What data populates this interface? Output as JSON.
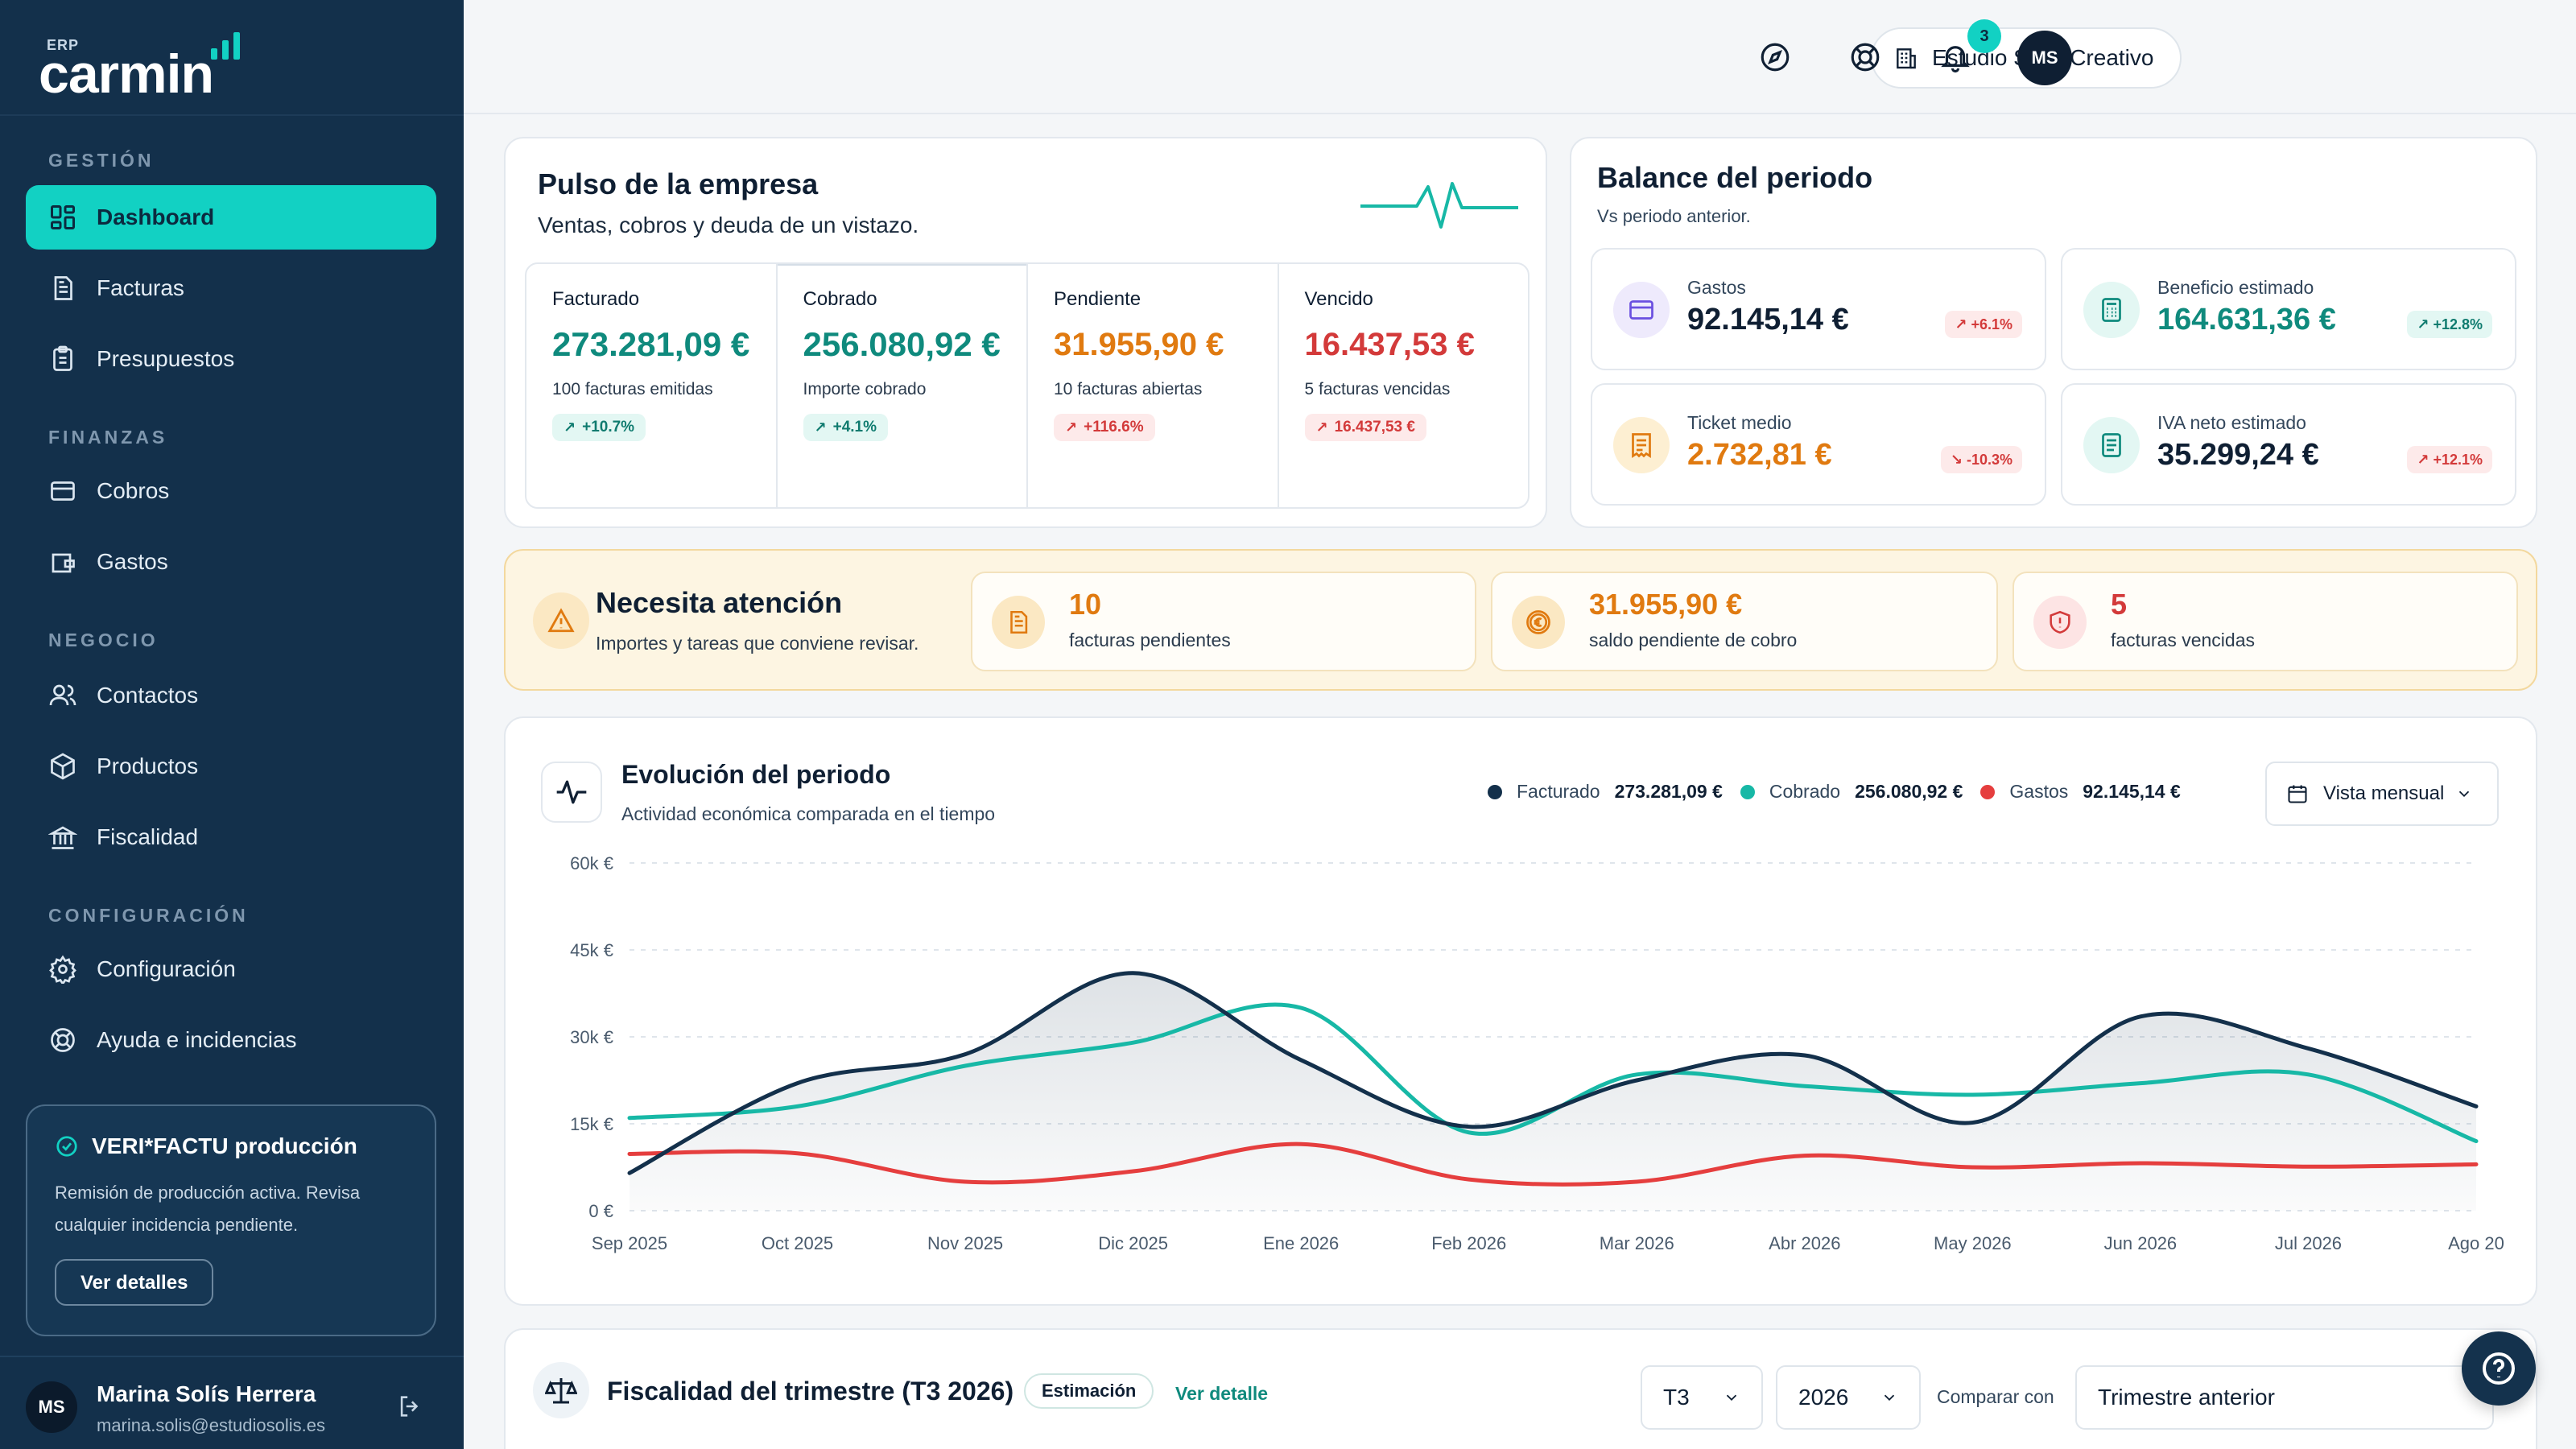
{
  "brand": {
    "erp_label": "ERP",
    "name": "carmin"
  },
  "sidebar": {
    "sections": [
      {
        "label": "GESTIÓN"
      },
      {
        "label": "FINANZAS"
      },
      {
        "label": "NEGOCIO"
      },
      {
        "label": "CONFIGURACIÓN"
      }
    ],
    "items": [
      {
        "label": "Dashboard",
        "icon": "dashboard-icon",
        "active": true
      },
      {
        "label": "Facturas",
        "icon": "invoice-icon"
      },
      {
        "label": "Presupuestos",
        "icon": "clipboard-icon"
      },
      {
        "label": "Cobros",
        "icon": "card-icon"
      },
      {
        "label": "Gastos",
        "icon": "wallet-icon"
      },
      {
        "label": "Contactos",
        "icon": "users-icon"
      },
      {
        "label": "Productos",
        "icon": "box-icon"
      },
      {
        "label": "Fiscalidad",
        "icon": "bank-icon"
      },
      {
        "label": "Configuración",
        "icon": "gear-icon"
      },
      {
        "label": "Ayuda e incidencias",
        "icon": "lifebuoy-icon"
      }
    ],
    "verifactu": {
      "title": "VERI*FACTU producción",
      "text": "Remisión de producción activa. Revisa cualquier incidencia pendiente.",
      "button": "Ver detalles"
    },
    "user": {
      "initials": "MS",
      "name": "Marina Solís Herrera",
      "email": "marina.solis@estudiosolis.es"
    }
  },
  "topbar": {
    "company": "Estudio Solís Creativo",
    "notifications": "3",
    "avatar": "MS"
  },
  "pulso": {
    "title": "Pulso de la empresa",
    "subtitle": "Ventas, cobros y deuda de un vistazo.",
    "metrics": [
      {
        "label": "Facturado",
        "value": "273.281,09 €",
        "note": "100 facturas emitidas",
        "chip": "+10.7%"
      },
      {
        "label": "Cobrado",
        "value": "256.080,92 €",
        "note": "Importe cobrado",
        "chip": "+4.1%"
      },
      {
        "label": "Pendiente",
        "value": "31.955,90 €",
        "note": "10 facturas abiertas",
        "chip": "+116.6%"
      },
      {
        "label": "Vencido",
        "value": "16.437,53 €",
        "note": "5 facturas vencidas",
        "chip": "16.437,53 €"
      }
    ]
  },
  "balance": {
    "title": "Balance del periodo",
    "subtitle": "Vs periodo anterior.",
    "items": [
      {
        "label": "Gastos",
        "value": "92.145,14 €",
        "chip": "+6.1%"
      },
      {
        "label": "Beneficio estimado",
        "value": "164.631,36 €",
        "chip": "+12.8%"
      },
      {
        "label": "Ticket medio",
        "value": "2.732,81 €",
        "chip": "-10.3%"
      },
      {
        "label": "IVA neto estimado",
        "value": "35.299,24 €",
        "chip": "+12.1%"
      }
    ]
  },
  "attention": {
    "title": "Necesita atención",
    "subtitle": "Importes y tareas que conviene revisar.",
    "boxes": [
      {
        "value": "10",
        "label": "facturas pendientes"
      },
      {
        "value": "31.955,90 €",
        "label": "saldo pendiente de cobro"
      },
      {
        "value": "5",
        "label": "facturas vencidas"
      }
    ]
  },
  "evolution": {
    "title": "Evolución del periodo",
    "subtitle": "Actividad económica comparada en el tiempo",
    "legend": [
      {
        "name": "Facturado",
        "value": "273.281,09 €",
        "color": "#13304b"
      },
      {
        "name": "Cobrado",
        "value": "256.080,92 €",
        "color": "#17b8a6"
      },
      {
        "name": "Gastos",
        "value": "92.145,14 €",
        "color": "#e53e3e"
      }
    ],
    "view_select": "Vista mensual"
  },
  "chart_data": {
    "type": "line",
    "x": [
      "Sep 2025",
      "Oct 2025",
      "Nov 2025",
      "Dic 2025",
      "Ene 2026",
      "Feb 2026",
      "Mar 2026",
      "Abr 2026",
      "May 2026",
      "Jun 2026",
      "Jul 2026",
      "Ago 20"
    ],
    "y_ticks": [
      "0 €",
      "15k €",
      "30k €",
      "45k €",
      "60k €"
    ],
    "ylim": [
      0,
      60000
    ],
    "grid": true,
    "series": [
      {
        "name": "Facturado",
        "color": "#13304b",
        "fill": true,
        "values": [
          6500,
          22000,
          27000,
          41000,
          26000,
          14500,
          22500,
          26800,
          15200,
          33500,
          28000,
          18000
        ]
      },
      {
        "name": "Cobrado",
        "color": "#17b8a6",
        "values": [
          16000,
          18000,
          25000,
          29000,
          35000,
          13500,
          23500,
          21500,
          20000,
          22000,
          23500,
          12000
        ]
      },
      {
        "name": "Gastos",
        "color": "#e53e3e",
        "values": [
          9800,
          9900,
          5000,
          6800,
          11500,
          5400,
          5000,
          9500,
          7500,
          8200,
          7600,
          8000
        ]
      }
    ]
  },
  "fiscal": {
    "title": "Fiscalidad del trimestre (T3 2026)",
    "badge": "Estimación",
    "link": "Ver detalle",
    "quarter": "T3",
    "year": "2026",
    "compare_label": "Comparar con",
    "compare_value": "Trimestre anterior"
  }
}
